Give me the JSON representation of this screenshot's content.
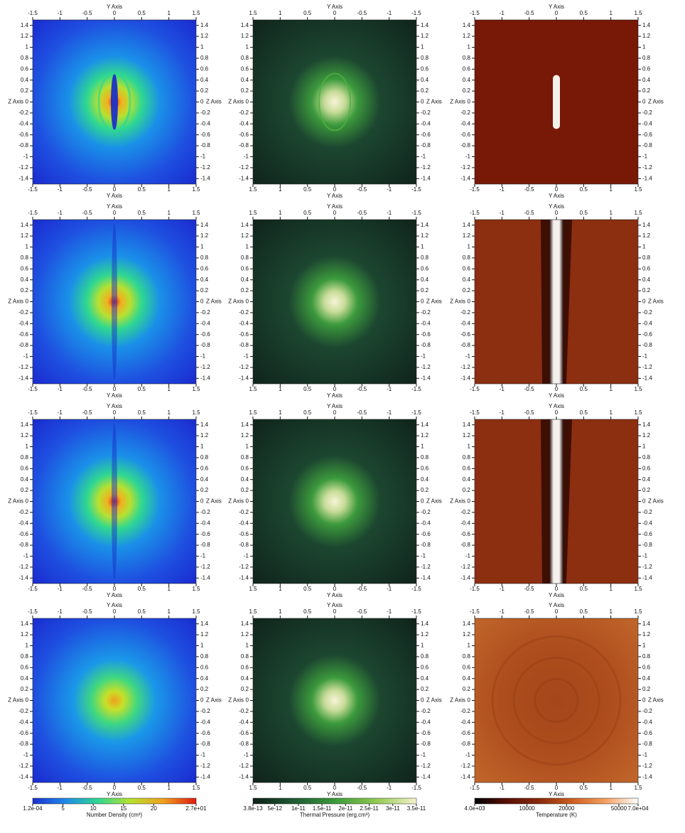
{
  "axis_labels": {
    "horizontal": "Y Axis",
    "vertical": "Z Axis"
  },
  "vlim": [
    -1.5,
    1.5
  ],
  "vticks": [
    1.4,
    1.2,
    1,
    0.8,
    0.6,
    0.4,
    0.2,
    0,
    -0.2,
    -0.4,
    -0.6,
    -0.8,
    -1,
    -1.2,
    -1.4
  ],
  "columns": [
    {
      "hlim": [
        -1.5,
        1.5
      ],
      "hticks": [
        -1.5,
        -1,
        -0.5,
        0,
        0.5,
        1,
        1.5
      ]
    },
    {
      "hlim": [
        1.5,
        -1.5
      ],
      "hticks": [
        1.5,
        1,
        0.5,
        0,
        -0.5,
        -1,
        -1.5
      ]
    },
    {
      "hlim": [
        -1.5,
        1.5
      ],
      "hticks": [
        -1.5,
        -1,
        -0.5,
        0,
        0.5,
        1,
        1.5
      ]
    }
  ],
  "colorbars": [
    {
      "title": "Number Density (cm³)",
      "scale": "linear",
      "lim": [
        0.00012,
        27
      ],
      "ticks": [
        {
          "value": 0.00012,
          "label": "1.2e-04"
        },
        5,
        10,
        15,
        20,
        {
          "value": 27,
          "label": "2.7e+01"
        }
      ],
      "colors": [
        "#1a2fd0",
        "#1f8ae8",
        "#30d890",
        "#b8e030",
        "#f0a020",
        "#e01a10"
      ]
    },
    {
      "title": "Thermal Pressure (erg.cm³)",
      "scale": "linear",
      "lim": [
        3.8e-13,
        3.5e-11
      ],
      "ticks": [
        {
          "value": 3.8e-13,
          "label": "3.8e-13"
        },
        {
          "value": 5e-12,
          "label": "5e-12"
        },
        {
          "value": 1e-11,
          "label": "1e-11"
        },
        {
          "value": 1.5e-11,
          "label": "1.5e-11"
        },
        {
          "value": 2e-11,
          "label": "2e-11"
        },
        {
          "value": 2.5e-11,
          "label": "2.5e-11"
        },
        {
          "value": 3e-11,
          "label": "3e-11"
        },
        {
          "value": 3.5e-11,
          "label": "3.5e-11"
        }
      ],
      "colors": [
        "#0d1f18",
        "#1f5a34",
        "#3a9a3a",
        "#90c850",
        "#f6f4cc"
      ]
    },
    {
      "title": "Temperature (K)",
      "scale": "log",
      "lim": [
        4000,
        70000
      ],
      "ticks": [
        {
          "value": 4000,
          "label": "4.0e+03"
        },
        10000,
        20000,
        50000,
        {
          "value": 70000,
          "label": "7.0e+04"
        }
      ],
      "colors": [
        "#000000",
        "#5a1004",
        "#8a2a0c",
        "#d06020",
        "#f4a060",
        "#ffffff"
      ]
    }
  ]
}
